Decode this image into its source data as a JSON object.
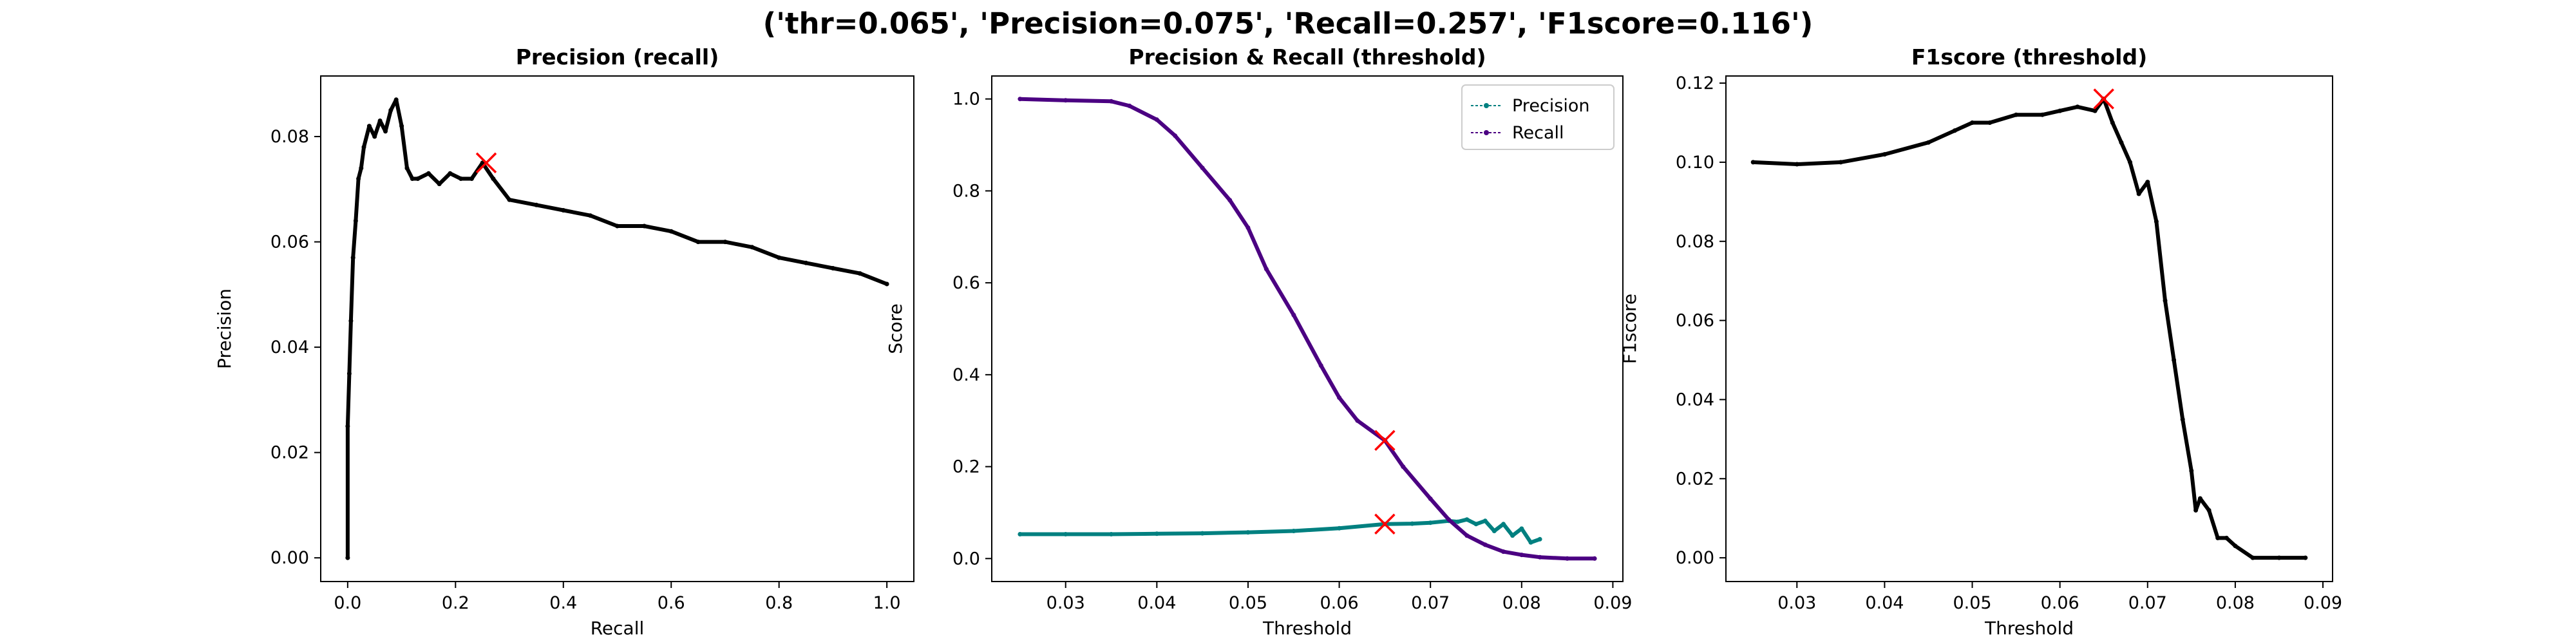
{
  "figure": {
    "suptitle": "('thr=0.065', 'Precision=0.075', 'Recall=0.257', 'F1score=0.116')"
  },
  "colors": {
    "black": "#000000",
    "precision": "#008080",
    "recall": "#4b0082",
    "marker": "#ff0000"
  },
  "chart_data": [
    {
      "type": "line",
      "title": "Precision (recall)",
      "xlabel": "Recall",
      "ylabel": "Precision",
      "xlim": [
        -0.05,
        1.05
      ],
      "ylim": [
        -0.0045,
        0.0915
      ],
      "xticks": [
        0.0,
        0.2,
        0.4,
        0.6,
        0.8,
        1.0
      ],
      "xtick_labels": [
        "0.0",
        "0.2",
        "0.4",
        "0.6",
        "0.8",
        "1.0"
      ],
      "yticks": [
        0.0,
        0.02,
        0.04,
        0.06,
        0.08
      ],
      "ytick_labels": [
        "0.00",
        "0.02",
        "0.04",
        "0.06",
        "0.08"
      ],
      "series": [
        {
          "color": "#000000",
          "x": [
            0.0,
            0.0,
            0.003,
            0.006,
            0.01,
            0.015,
            0.02,
            0.025,
            0.03,
            0.04,
            0.05,
            0.06,
            0.07,
            0.08,
            0.09,
            0.1,
            0.11,
            0.12,
            0.13,
            0.15,
            0.17,
            0.19,
            0.21,
            0.23,
            0.25,
            0.27,
            0.3,
            0.35,
            0.4,
            0.45,
            0.5,
            0.55,
            0.6,
            0.65,
            0.7,
            0.75,
            0.8,
            0.85,
            0.9,
            0.95,
            1.0
          ],
          "y": [
            0.0,
            0.025,
            0.035,
            0.045,
            0.057,
            0.064,
            0.072,
            0.074,
            0.078,
            0.082,
            0.08,
            0.083,
            0.081,
            0.085,
            0.087,
            0.082,
            0.074,
            0.072,
            0.072,
            0.073,
            0.071,
            0.073,
            0.072,
            0.072,
            0.075,
            0.072,
            0.068,
            0.067,
            0.066,
            0.065,
            0.063,
            0.063,
            0.062,
            0.06,
            0.06,
            0.059,
            0.057,
            0.056,
            0.055,
            0.054,
            0.052
          ]
        }
      ],
      "markers": [
        {
          "x": 0.257,
          "y": 0.075,
          "color": "#ff0000"
        }
      ]
    },
    {
      "type": "line",
      "title": "Precision & Recall (threshold)",
      "xlabel": "Threshold",
      "ylabel": "Score",
      "xlim": [
        0.0219,
        0.0911
      ],
      "ylim": [
        -0.05,
        1.05
      ],
      "xticks": [
        0.03,
        0.04,
        0.05,
        0.06,
        0.07,
        0.08,
        0.09
      ],
      "xtick_labels": [
        "0.03",
        "0.04",
        "0.05",
        "0.06",
        "0.07",
        "0.08",
        "0.09"
      ],
      "yticks": [
        0.0,
        0.2,
        0.4,
        0.6,
        0.8,
        1.0
      ],
      "ytick_labels": [
        "0.0",
        "0.2",
        "0.4",
        "0.6",
        "0.8",
        "1.0"
      ],
      "legend": {
        "position": "top-right"
      },
      "series": [
        {
          "name": "Precision",
          "color": "#008080",
          "x": [
            0.025,
            0.03,
            0.035,
            0.04,
            0.045,
            0.05,
            0.055,
            0.06,
            0.065,
            0.068,
            0.07,
            0.072,
            0.073,
            0.074,
            0.075,
            0.076,
            0.077,
            0.078,
            0.079,
            0.08,
            0.081,
            0.082
          ],
          "y": [
            0.053,
            0.053,
            0.053,
            0.054,
            0.055,
            0.057,
            0.06,
            0.066,
            0.075,
            0.076,
            0.078,
            0.082,
            0.08,
            0.085,
            0.075,
            0.082,
            0.06,
            0.075,
            0.05,
            0.065,
            0.035,
            0.042
          ]
        },
        {
          "name": "Recall",
          "color": "#4b0082",
          "x": [
            0.025,
            0.03,
            0.035,
            0.037,
            0.04,
            0.042,
            0.045,
            0.048,
            0.05,
            0.052,
            0.055,
            0.058,
            0.06,
            0.062,
            0.065,
            0.067,
            0.07,
            0.072,
            0.074,
            0.076,
            0.078,
            0.08,
            0.082,
            0.085,
            0.088
          ],
          "y": [
            1.0,
            0.997,
            0.995,
            0.985,
            0.955,
            0.92,
            0.85,
            0.78,
            0.72,
            0.63,
            0.53,
            0.42,
            0.35,
            0.3,
            0.257,
            0.2,
            0.13,
            0.085,
            0.05,
            0.03,
            0.015,
            0.008,
            0.003,
            0.0,
            0.0
          ]
        }
      ],
      "markers": [
        {
          "x": 0.065,
          "y": 0.257,
          "color": "#ff0000"
        },
        {
          "x": 0.065,
          "y": 0.075,
          "color": "#ff0000"
        }
      ]
    },
    {
      "type": "line",
      "title": "F1score (threshold)",
      "xlabel": "Threshold",
      "ylabel": "F1score",
      "xlim": [
        0.0219,
        0.0911
      ],
      "ylim": [
        -0.006,
        0.1218
      ],
      "xticks": [
        0.03,
        0.04,
        0.05,
        0.06,
        0.07,
        0.08,
        0.09
      ],
      "xtick_labels": [
        "0.03",
        "0.04",
        "0.05",
        "0.06",
        "0.07",
        "0.08",
        "0.09"
      ],
      "yticks": [
        0.0,
        0.02,
        0.04,
        0.06,
        0.08,
        0.1,
        0.12
      ],
      "ytick_labels": [
        "0.00",
        "0.02",
        "0.04",
        "0.06",
        "0.08",
        "0.10",
        "0.12"
      ],
      "series": [
        {
          "color": "#000000",
          "x": [
            0.025,
            0.03,
            0.035,
            0.04,
            0.045,
            0.048,
            0.05,
            0.052,
            0.055,
            0.058,
            0.06,
            0.062,
            0.064,
            0.065,
            0.066,
            0.067,
            0.068,
            0.069,
            0.07,
            0.071,
            0.072,
            0.073,
            0.074,
            0.075,
            0.0755,
            0.076,
            0.077,
            0.078,
            0.079,
            0.08,
            0.082,
            0.085,
            0.088
          ],
          "y": [
            0.1,
            0.0995,
            0.1,
            0.102,
            0.105,
            0.108,
            0.11,
            0.11,
            0.112,
            0.112,
            0.113,
            0.114,
            0.113,
            0.116,
            0.11,
            0.105,
            0.1,
            0.092,
            0.095,
            0.085,
            0.065,
            0.05,
            0.035,
            0.022,
            0.012,
            0.015,
            0.012,
            0.005,
            0.005,
            0.003,
            0.0,
            0.0,
            0.0
          ]
        }
      ],
      "markers": [
        {
          "x": 0.065,
          "y": 0.116,
          "color": "#ff0000"
        }
      ]
    }
  ]
}
